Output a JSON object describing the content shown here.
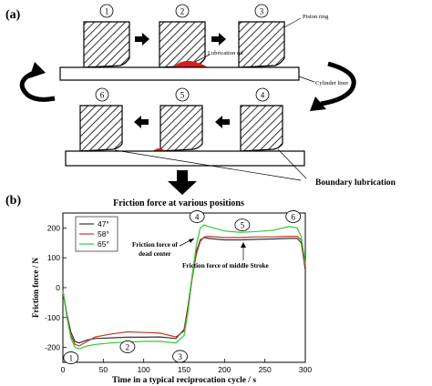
{
  "panel_a": {
    "label": "(a)",
    "steps_top": [
      "1",
      "2",
      "3"
    ],
    "steps_bottom": [
      "6",
      "5",
      "4"
    ],
    "piston_ring_label": "Piston ring",
    "lubrication_oil_label": "Lubrication oil",
    "cylinder_liner_label": "Cylinder liner",
    "boundary_lubrication_label": "Boundary lubrication"
  },
  "panel_b": {
    "label": "(b)",
    "title": "Friction force at various positions",
    "annotation_dead_center": [
      "Friction force of",
      "dead center"
    ],
    "annotation_middle_stroke": "Friction force of middle Stroke",
    "position_markers": [
      "1",
      "2",
      "3",
      "4",
      "5",
      "6"
    ]
  },
  "colors": {
    "series_47": "#333333",
    "series_58": "#c0392b",
    "series_65": "#33cc33",
    "oil": "#d12020"
  },
  "chart_data": {
    "type": "line",
    "title": "Friction force at various positions",
    "xlabel": "Time in a typical reciprocation cycle / s",
    "ylabel": "Friction force / N",
    "xlim": [
      0,
      300
    ],
    "ylim": [
      -250,
      250
    ],
    "xticks": [
      0,
      50,
      100,
      150,
      200,
      250,
      300
    ],
    "yticks": [
      -200,
      -100,
      0,
      100,
      200
    ],
    "legend_position": "top-left",
    "series": [
      {
        "name": "47°",
        "x": [
          0,
          5,
          10,
          15,
          20,
          30,
          40,
          60,
          80,
          100,
          120,
          140,
          150,
          155,
          160,
          165,
          170,
          175,
          180,
          200,
          220,
          240,
          260,
          280,
          290,
          295,
          300
        ],
        "y": [
          -10,
          -90,
          -150,
          -180,
          -185,
          -175,
          -170,
          -168,
          -166,
          -166,
          -165,
          -170,
          -140,
          -60,
          40,
          120,
          160,
          168,
          165,
          160,
          160,
          162,
          163,
          165,
          165,
          150,
          60
        ]
      },
      {
        "name": "58°",
        "x": [
          0,
          5,
          10,
          15,
          20,
          30,
          40,
          60,
          80,
          100,
          120,
          140,
          150,
          155,
          160,
          165,
          170,
          175,
          180,
          200,
          220,
          240,
          260,
          280,
          290,
          295,
          300
        ],
        "y": [
          -10,
          -95,
          -160,
          -190,
          -195,
          -180,
          -165,
          -155,
          -148,
          -150,
          -152,
          -165,
          -145,
          -70,
          30,
          110,
          155,
          170,
          172,
          168,
          168,
          170,
          170,
          172,
          172,
          160,
          70
        ]
      },
      {
        "name": "65°",
        "x": [
          0,
          5,
          10,
          15,
          20,
          30,
          40,
          60,
          80,
          100,
          120,
          140,
          150,
          155,
          160,
          165,
          170,
          175,
          180,
          200,
          220,
          240,
          260,
          280,
          290,
          295,
          300
        ],
        "y": [
          -10,
          -100,
          -170,
          -200,
          -205,
          -195,
          -190,
          -185,
          -182,
          -180,
          -180,
          -185,
          -160,
          -80,
          40,
          140,
          200,
          210,
          205,
          190,
          185,
          188,
          192,
          205,
          200,
          170,
          80
        ]
      }
    ]
  }
}
